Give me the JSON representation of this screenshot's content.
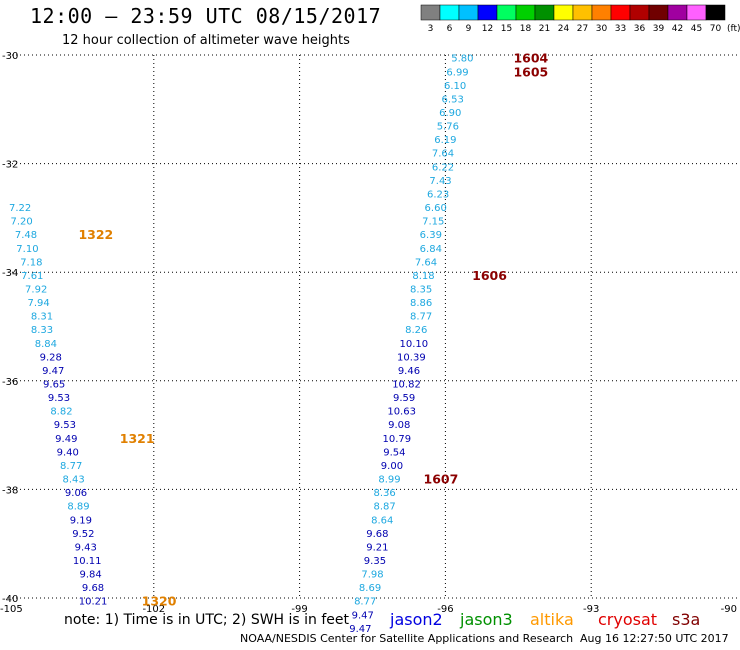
{
  "header": {
    "title": "12:00 – 23:59 UTC 08/15/2017",
    "subtitle": "12 hour collection of altimeter wave heights"
  },
  "colorbar": {
    "ticks": [
      "3",
      "6",
      "9",
      "12",
      "15",
      "18",
      "21",
      "24",
      "27",
      "30",
      "33",
      "36",
      "39",
      "42",
      "45",
      "70"
    ],
    "unit": "(ft)",
    "colors": [
      "#808080",
      "#00ffff",
      "#00c0ff",
      "#0000ff",
      "#00ff60",
      "#00d000",
      "#009000",
      "#ffff00",
      "#ffc000",
      "#ff8000",
      "#ff0000",
      "#b00000",
      "#700000",
      "#a000a0",
      "#ff60ff",
      "#000000"
    ]
  },
  "axes": {
    "x": {
      "min": -105,
      "max": -90,
      "ticks": [
        -105,
        -102,
        -99,
        -96,
        -93,
        -90
      ],
      "tick_labels": [
        "-105",
        "-102",
        "-99",
        "-96",
        "-93",
        "-90"
      ]
    },
    "y": {
      "min": -40,
      "max": -30,
      "ticks": [
        -30,
        -32,
        -34,
        -36,
        -38,
        -40
      ],
      "tick_labels": [
        "-30",
        "-32",
        "-34",
        "-36",
        "-38",
        "-40"
      ]
    },
    "grid": "dotted"
  },
  "chart_data": {
    "type": "scatter",
    "series": [
      {
        "name": "altika",
        "color": "#e08000",
        "points": [
          [
            -104.75,
            -32.8,
            "7.22"
          ],
          [
            -104.72,
            -33.05,
            "7.20"
          ],
          [
            -104.63,
            -33.3,
            "7.48"
          ],
          [
            -104.6,
            -33.55,
            "7.10"
          ],
          [
            -104.52,
            -33.8,
            "7.18"
          ],
          [
            -104.5,
            -34.05,
            "7.61"
          ],
          [
            -104.42,
            -34.3,
            "7.92"
          ],
          [
            -104.37,
            -34.55,
            "7.94"
          ],
          [
            -104.3,
            -34.8,
            "8.31"
          ],
          [
            -104.3,
            -35.05,
            "8.33"
          ],
          [
            -104.22,
            -35.3,
            "8.84"
          ],
          [
            -104.12,
            -35.55,
            "9.28"
          ],
          [
            -104.07,
            -35.8,
            "9.47"
          ],
          [
            -104.05,
            -36.05,
            "9.65"
          ],
          [
            -103.95,
            -36.3,
            "9.53"
          ],
          [
            -103.9,
            -36.55,
            "8.82"
          ],
          [
            -103.83,
            -36.8,
            "9.53"
          ],
          [
            -103.8,
            -37.05,
            "9.49"
          ],
          [
            -103.77,
            -37.3,
            "9.40"
          ],
          [
            -103.7,
            -37.55,
            "8.77"
          ],
          [
            -103.65,
            -37.8,
            "8.43"
          ],
          [
            -103.6,
            -38.05,
            "9.06"
          ],
          [
            -103.55,
            -38.3,
            "8.89"
          ],
          [
            -103.5,
            -38.55,
            "9.19"
          ],
          [
            -103.45,
            -38.8,
            "9.52"
          ],
          [
            -103.4,
            -39.05,
            "9.43"
          ],
          [
            -103.37,
            -39.3,
            "10.11"
          ],
          [
            -103.3,
            -39.55,
            "9.84"
          ],
          [
            -103.25,
            -39.8,
            "9.68"
          ],
          [
            -103.25,
            -40.05,
            "10.21"
          ]
        ]
      },
      {
        "name": "cryosat",
        "color": "#8b0000",
        "points": [
          [
            -95.65,
            -30.05,
            "5.80"
          ],
          [
            -95.75,
            -30.3,
            "6.99"
          ],
          [
            -95.8,
            -30.55,
            "6.10"
          ],
          [
            -95.85,
            -30.8,
            "6.53"
          ],
          [
            -95.9,
            -31.05,
            "6.90"
          ],
          [
            -95.95,
            -31.3,
            "5.76"
          ],
          [
            -96,
            -31.55,
            "6.19"
          ],
          [
            -96.05,
            -31.8,
            "7.64"
          ],
          [
            -96.05,
            -32.05,
            "6.22"
          ],
          [
            -96.1,
            -32.3,
            "7.43"
          ],
          [
            -96.15,
            -32.55,
            "6.23"
          ],
          [
            -96.2,
            -32.8,
            "6.60"
          ],
          [
            -96.25,
            -33.05,
            "7.15"
          ],
          [
            -96.3,
            -33.3,
            "6.39"
          ],
          [
            -96.3,
            -33.55,
            "6.84"
          ],
          [
            -96.4,
            -33.8,
            "7.64"
          ],
          [
            -96.45,
            -34.05,
            "8.18"
          ],
          [
            -96.5,
            -34.3,
            "8.35"
          ],
          [
            -96.5,
            -34.55,
            "8.86"
          ],
          [
            -96.5,
            -34.8,
            "8.77"
          ],
          [
            -96.6,
            -35.05,
            "8.26"
          ],
          [
            -96.65,
            -35.3,
            "10.10"
          ],
          [
            -96.7,
            -35.55,
            "10.39"
          ],
          [
            -96.75,
            -35.8,
            "9.46"
          ],
          [
            -96.8,
            -36.05,
            "10.82"
          ],
          [
            -96.85,
            -36.3,
            "9.59"
          ],
          [
            -96.9,
            -36.55,
            "10.63"
          ],
          [
            -96.95,
            -36.8,
            "9.08"
          ],
          [
            -97,
            -37.05,
            "10.79"
          ],
          [
            -97.05,
            -37.3,
            "9.54"
          ],
          [
            -97.1,
            -37.55,
            "9.00"
          ],
          [
            -97.15,
            -37.8,
            "8.99"
          ],
          [
            -97.25,
            -38.05,
            "8.36"
          ],
          [
            -97.25,
            -38.3,
            "8.87"
          ],
          [
            -97.3,
            -38.55,
            "8.64"
          ],
          [
            -97.4,
            -38.8,
            "9.68"
          ],
          [
            -97.4,
            -39.05,
            "9.21"
          ],
          [
            -97.45,
            -39.3,
            "9.35"
          ],
          [
            -97.5,
            -39.55,
            "7.98"
          ],
          [
            -97.55,
            -39.8,
            "8.69"
          ],
          [
            -97.65,
            -40.05,
            "8.77"
          ],
          [
            -97.7,
            -40.3,
            "9.47"
          ],
          [
            -97.75,
            -40.55,
            "9.47"
          ]
        ]
      }
    ],
    "pass_labels": [
      {
        "text": "1604",
        "series": "cryosat",
        "lon": -94.6,
        "lat": -30.05
      },
      {
        "text": "1605",
        "series": "cryosat",
        "lon": -94.6,
        "lat": -30.3
      },
      {
        "text": "1606",
        "series": "cryosat",
        "lon": -95.45,
        "lat": -34.05
      },
      {
        "text": "1607",
        "series": "cryosat",
        "lon": -96.45,
        "lat": -37.8
      },
      {
        "text": "1322",
        "series": "altika",
        "lon": -103.55,
        "lat": -33.3
      },
      {
        "text": "1321",
        "series": "altika",
        "lon": -102.7,
        "lat": -37.05
      },
      {
        "text": "1320",
        "series": "altika",
        "lon": -102.25,
        "lat": -40.05
      }
    ]
  },
  "legend": {
    "note": "note: 1) Time is in UTC; 2) SWH is in feet",
    "items": [
      {
        "label": "jason2",
        "color": "#0000e0"
      },
      {
        "label": "jason3",
        "color": "#009000"
      },
      {
        "label": "altika",
        "color": "#ff9900"
      },
      {
        "label": "cryosat",
        "color": "#e00000"
      },
      {
        "label": "s3a",
        "color": "#800000"
      }
    ]
  },
  "footer": {
    "credit": "NOAA/NESDIS Center for Satellite Applications and Research",
    "timestamp": "Aug 16 12:27:50 UTC 2017"
  }
}
